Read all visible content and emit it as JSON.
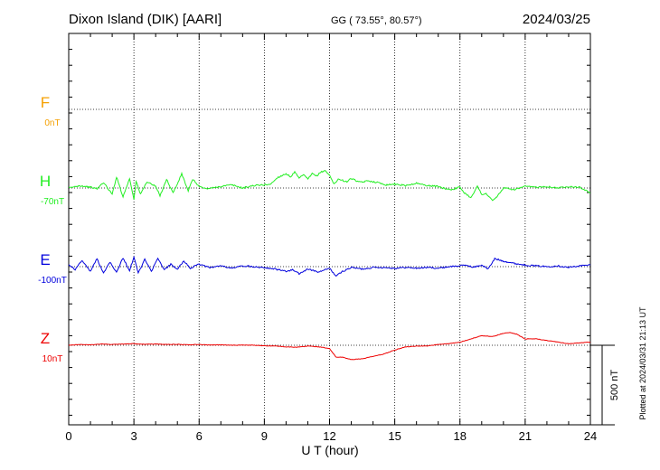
{
  "header": {
    "station": "Dixon Island (DIK)  [AARI]",
    "coords": "GG ( 73.55°,  80.57°)",
    "date": "2024/03/25"
  },
  "side_note": "Plotted at 2024/03/31 21:13 UT",
  "scale_label": "500 nT",
  "chart_data": {
    "type": "line",
    "xlabel": "U T (hour)",
    "xlim": [
      0,
      24
    ],
    "x_ticks": [
      "0",
      "3",
      "6",
      "9",
      "12",
      "15",
      "18",
      "21",
      "24"
    ],
    "scale_bar_nT": 500,
    "series": [
      {
        "name": "F",
        "baseline_label": "0nT",
        "color": "#f5a000",
        "x": [],
        "y": []
      },
      {
        "name": "H",
        "baseline_label": "-70nT",
        "color": "#22ee22",
        "x": [
          0,
          0.5,
          1,
          1.3,
          1.6,
          2.0,
          2.2,
          2.5,
          2.8,
          3.0,
          3.1,
          3.3,
          3.6,
          4.0,
          4.2,
          4.5,
          4.8,
          5.0,
          5.2,
          5.5,
          5.7,
          6.0,
          6.3,
          6.6,
          7.0,
          7.5,
          8,
          8.5,
          9,
          9.3,
          9.6,
          10,
          10.2,
          10.4,
          10.6,
          10.8,
          11,
          11.2,
          11.4,
          11.6,
          11.8,
          12,
          12.2,
          12.4,
          12.8,
          13,
          13.4,
          13.8,
          14.2,
          14.6,
          15,
          15.5,
          16,
          16.5,
          17,
          17.2,
          17.6,
          18,
          18.2,
          18.5,
          18.8,
          19.0,
          19.2,
          19.5,
          19.7,
          20,
          20.5,
          21,
          21.5,
          22,
          22.5,
          23,
          23.5,
          24
        ],
        "y": [
          0,
          15,
          5,
          -5,
          35,
          -40,
          70,
          -55,
          60,
          -70,
          45,
          -40,
          40,
          10,
          -50,
          55,
          -30,
          25,
          90,
          -20,
          55,
          10,
          -5,
          0,
          10,
          20,
          0,
          15,
          20,
          25,
          65,
          90,
          70,
          100,
          60,
          85,
          55,
          90,
          75,
          100,
          110,
          80,
          25,
          55,
          40,
          60,
          35,
          45,
          35,
          20,
          25,
          15,
          30,
          15,
          10,
          0,
          -10,
          5,
          -30,
          -60,
          10,
          -40,
          -35,
          -80,
          -55,
          0,
          -10,
          10,
          5,
          10,
          0,
          10,
          5,
          -30
        ]
      },
      {
        "name": "E",
        "baseline_label": "-100nT",
        "color": "#0000dd",
        "x": [
          0,
          0.3,
          0.6,
          1,
          1.3,
          1.6,
          1.9,
          2.2,
          2.5,
          2.8,
          3.0,
          3.2,
          3.5,
          3.8,
          4.1,
          4.4,
          4.7,
          5.0,
          5.3,
          5.6,
          6.0,
          6.5,
          7,
          7.5,
          8,
          8.5,
          9,
          9.5,
          10,
          10.3,
          10.6,
          11,
          11.5,
          12,
          12.3,
          12.6,
          13,
          13.5,
          14,
          14.5,
          15,
          15.5,
          16,
          16.5,
          17,
          17.5,
          18,
          18.3,
          18.6,
          19,
          19.3,
          19.6,
          20,
          20.5,
          21,
          21.5,
          22,
          22.5,
          23,
          23.5,
          24
        ],
        "y": [
          15,
          -20,
          40,
          -30,
          50,
          -40,
          30,
          -35,
          55,
          -25,
          60,
          -40,
          45,
          -30,
          50,
          -20,
          15,
          -15,
          35,
          -10,
          15,
          -5,
          5,
          -10,
          5,
          0,
          -5,
          -15,
          -30,
          -20,
          -45,
          -15,
          -35,
          -10,
          -60,
          -30,
          -5,
          -15,
          -5,
          -5,
          -10,
          -5,
          -10,
          -5,
          -10,
          0,
          5,
          10,
          -5,
          10,
          -15,
          50,
          35,
          20,
          10,
          5,
          0,
          5,
          -5,
          5,
          10
        ]
      },
      {
        "name": "Z",
        "baseline_label": "10nT",
        "color": "#ee0000",
        "x": [
          0,
          0.5,
          1,
          1.5,
          2,
          2.5,
          3,
          3.5,
          4,
          4.5,
          5,
          5.5,
          6,
          6.5,
          7,
          7.5,
          8,
          8.5,
          9,
          9.5,
          10,
          10.5,
          11,
          11.5,
          12,
          12.3,
          12.6,
          13,
          13.5,
          14,
          14.5,
          15,
          15.5,
          16,
          16.5,
          17,
          17.5,
          18,
          18.5,
          19,
          19.5,
          20,
          20.3,
          20.6,
          21,
          21.5,
          22,
          22.5,
          23,
          23.5,
          24
        ],
        "y": [
          0,
          5,
          3,
          8,
          5,
          8,
          10,
          6,
          8,
          5,
          6,
          3,
          5,
          2,
          3,
          0,
          1,
          0,
          -3,
          -5,
          -10,
          -12,
          -5,
          -10,
          -20,
          -75,
          -75,
          -90,
          -85,
          -70,
          -55,
          -30,
          -10,
          -5,
          -5,
          5,
          10,
          20,
          40,
          60,
          55,
          75,
          80,
          70,
          40,
          40,
          30,
          20,
          10,
          15,
          20
        ]
      }
    ]
  }
}
